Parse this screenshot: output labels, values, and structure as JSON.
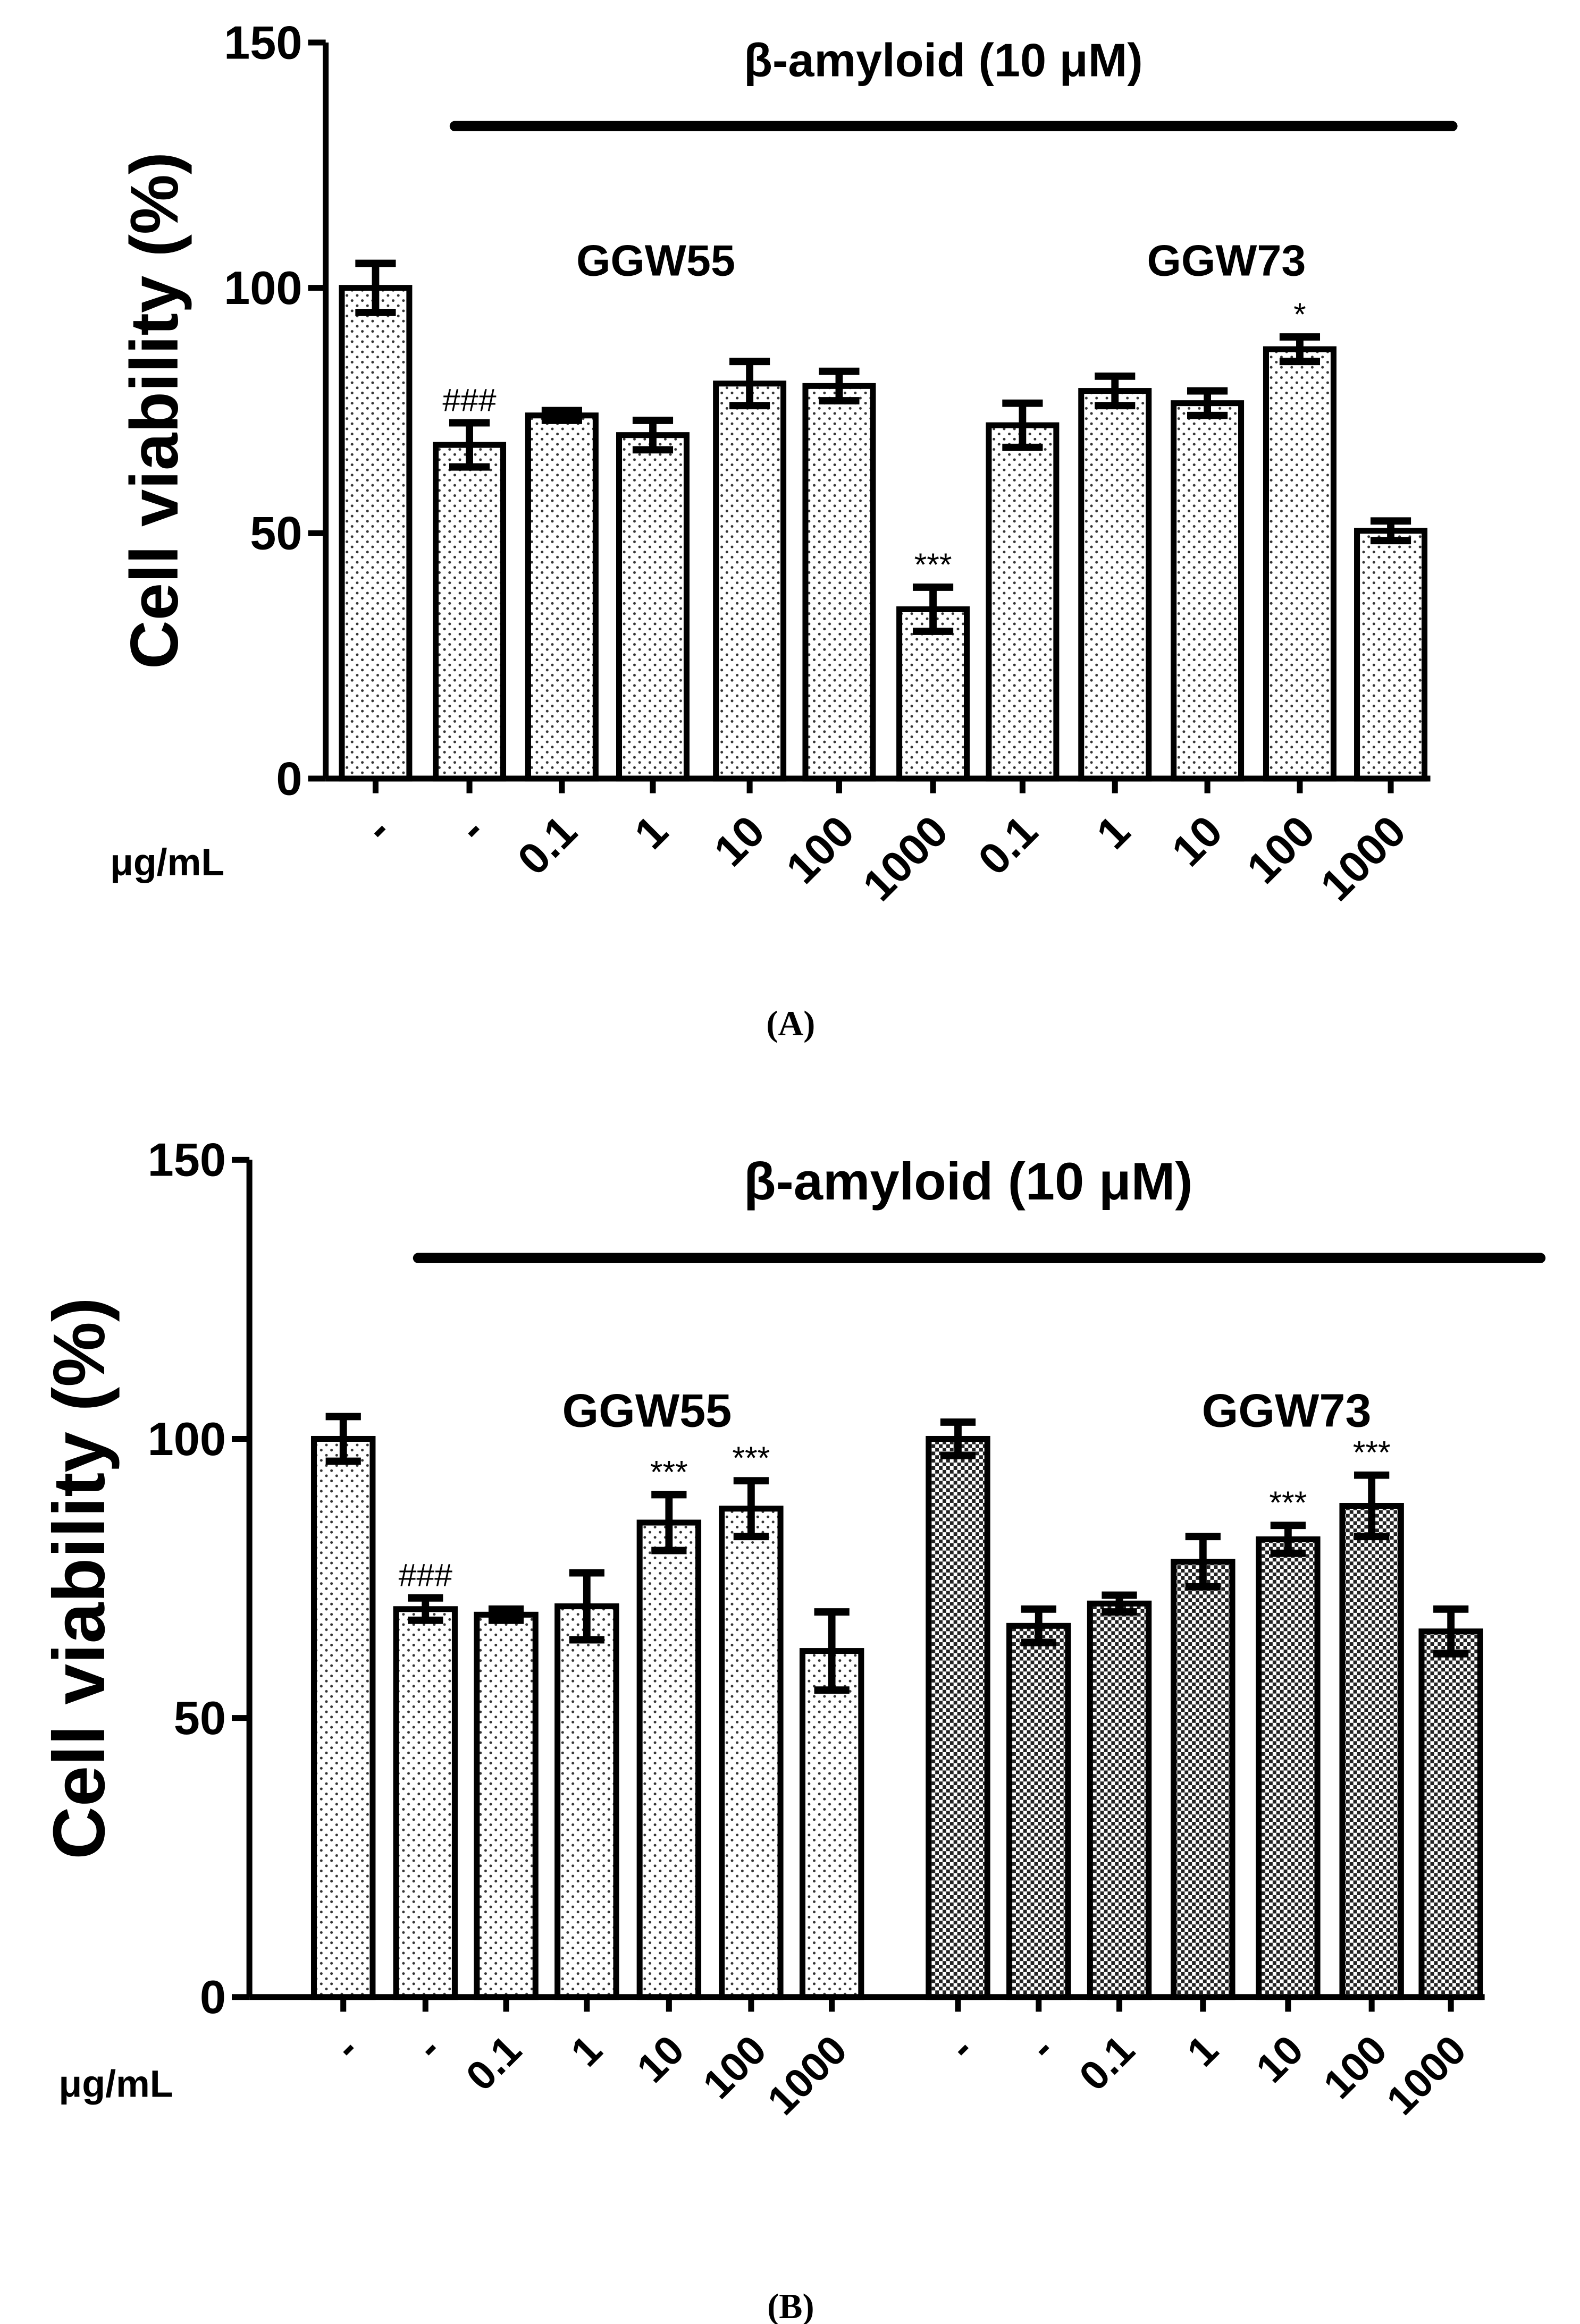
{
  "chart_data": [
    {
      "type": "bar",
      "panel_label": "(A)",
      "title": "β-amyloid (10 μM)",
      "ylabel": "Cell viability (%)",
      "xlabel": "μg/mL",
      "groups": [
        "GGW55",
        "GGW73"
      ],
      "categories": [
        "-",
        "-",
        "0.1",
        "1",
        "10",
        "100",
        "1000",
        "0.1",
        "1",
        "10",
        "100",
        "1000"
      ],
      "values": [
        100,
        68,
        74,
        70,
        80.5,
        80,
        34.5,
        72,
        79,
        76.5,
        87.5,
        50.5
      ],
      "errors": [
        5,
        4.5,
        1,
        3,
        4.5,
        3,
        4.5,
        4.5,
        3,
        2.5,
        2.5,
        2
      ],
      "value_annotations": [
        null,
        "###",
        null,
        null,
        null,
        null,
        "***",
        null,
        null,
        null,
        "*",
        null
      ],
      "bar_patterns": [
        "dots",
        "dots",
        "dots",
        "dots",
        "dots",
        "dots",
        "dots",
        "dots",
        "dots",
        "dots",
        "dots",
        "dots"
      ],
      "ylim": [
        0,
        150
      ],
      "yticks": [
        0,
        50,
        100,
        150
      ]
    },
    {
      "type": "bar",
      "panel_label": "(B)",
      "title": "β-amyloid (10 μM)",
      "ylabel": "Cell viability (%)",
      "xlabel": "μg/mL",
      "groups": [
        "GGW55",
        "GGW73"
      ],
      "categories": [
        "-",
        "-",
        "0.1",
        "1",
        "10",
        "100",
        "1000",
        "-",
        "-",
        "0.1",
        "1",
        "10",
        "100",
        "1000"
      ],
      "values": [
        100,
        69.5,
        68.5,
        70,
        85,
        87.5,
        62,
        100,
        66.5,
        70.5,
        78,
        82,
        88,
        65.5
      ],
      "errors": [
        4,
        2,
        1,
        6,
        5,
        5,
        7,
        3,
        3,
        1.5,
        4.5,
        2.5,
        5.5,
        4
      ],
      "value_annotations": [
        null,
        "###",
        null,
        null,
        "***",
        "***",
        null,
        null,
        null,
        null,
        null,
        "***",
        "***",
        null
      ],
      "bar_patterns": [
        "dots",
        "dots",
        "dots",
        "dots",
        "dots",
        "dots",
        "dots",
        "checker",
        "checker",
        "checker",
        "checker",
        "checker",
        "checker",
        "checker"
      ],
      "ylim": [
        0,
        150
      ],
      "yticks": [
        0,
        50,
        100,
        150
      ]
    }
  ]
}
